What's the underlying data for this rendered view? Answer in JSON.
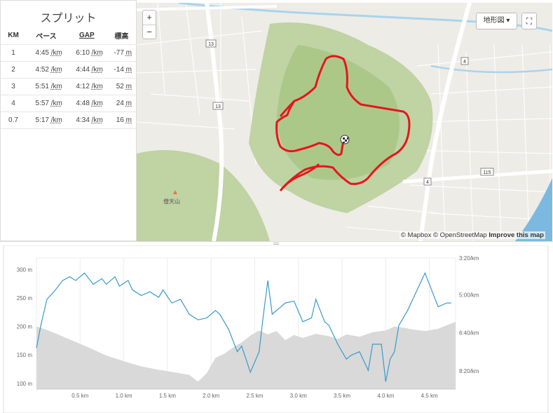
{
  "splits": {
    "title": "スプリット",
    "headers": {
      "km": "KM",
      "pace": "ペース",
      "gap": "GAP",
      "elev": "標高"
    },
    "rows": [
      {
        "km": "1",
        "pace": "4:45",
        "pace_unit": "/km",
        "gap": "6:10",
        "gap_unit": "/km",
        "elev": "-77",
        "elev_unit": "m"
      },
      {
        "km": "2",
        "pace": "4:52",
        "pace_unit": "/km",
        "gap": "4:44",
        "gap_unit": "/km",
        "elev": "-14",
        "elev_unit": "m"
      },
      {
        "km": "3",
        "pace": "5:51",
        "pace_unit": "/km",
        "gap": "4:12",
        "gap_unit": "/km",
        "elev": "52",
        "elev_unit": "m"
      },
      {
        "km": "4",
        "pace": "5:57",
        "pace_unit": "/km",
        "gap": "4:48",
        "gap_unit": "/km",
        "elev": "24",
        "elev_unit": "m"
      },
      {
        "km": "0.7",
        "pace": "5:17",
        "pace_unit": "/km",
        "gap": "4:34",
        "gap_unit": "/km",
        "elev": "16",
        "elev_unit": "m"
      }
    ]
  },
  "map": {
    "zoom_in": "+",
    "zoom_out": "−",
    "map_type_label": "地形図",
    "fullscreen_icon": "fullscreen-icon",
    "attribution_mapbox": "© Mapbox",
    "attribution_osm": "© OpenStreetMap",
    "attribution_improve": "Improve this map",
    "route_shields": [
      "13",
      "13",
      "4",
      "4",
      "115"
    ],
    "peak_label": "僧天山",
    "route_color": "#e8141c"
  },
  "chart_data": {
    "type": "area",
    "x_unit": "km",
    "xlim": [
      0,
      4.8
    ],
    "x_ticks": [
      0.5,
      1.0,
      1.5,
      2.0,
      2.5,
      3.0,
      3.5,
      4.0,
      4.5
    ],
    "x_tick_labels": [
      "0.5 km",
      "1.0 km",
      "1.5 km",
      "2.0 km",
      "2.5 km",
      "3.0 km",
      "3.5 km",
      "4.0 km",
      "4.5 km"
    ],
    "left_axis": {
      "ylim": [
        90,
        320
      ],
      "ticks": [
        100,
        150,
        200,
        250,
        300
      ],
      "tick_labels": [
        "100 m",
        "150 m",
        "200 m",
        "250 m",
        "300 m"
      ]
    },
    "right_axis": {
      "ticks": [
        "3:20/km",
        "5:00/km",
        "6:40/km",
        "8:20/km"
      ]
    },
    "series": [
      {
        "kind": "elevation",
        "color": "#d9d9d9",
        "x": [
          0,
          0.1,
          0.2,
          0.4,
          0.6,
          0.8,
          1.0,
          1.2,
          1.4,
          1.6,
          1.75,
          1.85,
          1.95,
          2.05,
          2.15,
          2.25,
          2.35,
          2.45,
          2.55,
          2.65,
          2.75,
          2.85,
          2.95,
          3.05,
          3.2,
          3.35,
          3.45,
          3.55,
          3.7,
          3.85,
          4.0,
          4.1,
          4.2,
          4.3,
          4.45,
          4.6,
          4.8
        ],
        "y": [
          200,
          195,
          189,
          176,
          163,
          149,
          139,
          130,
          124,
          119,
          115,
          103,
          118,
          145,
          152,
          163,
          172,
          184,
          193,
          186,
          192,
          176,
          185,
          180,
          187,
          183,
          178,
          186,
          182,
          190,
          193,
          200,
          198,
          195,
          192,
          196,
          208
        ]
      },
      {
        "kind": "pace",
        "color": "#3a9ac9",
        "unit": "sec/km",
        "x": [
          0,
          0.05,
          0.12,
          0.2,
          0.3,
          0.38,
          0.45,
          0.55,
          0.65,
          0.75,
          0.8,
          0.9,
          0.95,
          1.05,
          1.1,
          1.2,
          1.3,
          1.4,
          1.45,
          1.55,
          1.65,
          1.75,
          1.85,
          1.95,
          2.05,
          2.1,
          2.2,
          2.3,
          2.35,
          2.45,
          2.55,
          2.6,
          2.65,
          2.7,
          2.8,
          2.85,
          2.95,
          3.05,
          3.15,
          3.2,
          3.3,
          3.35,
          3.45,
          3.55,
          3.6,
          3.7,
          3.8,
          3.85,
          3.95,
          4.0,
          4.05,
          4.1,
          4.15,
          4.25,
          4.35,
          4.45,
          4.55,
          4.6,
          4.7,
          4.75
        ],
        "y": [
          390,
          330,
          260,
          240,
          210,
          200,
          210,
          190,
          220,
          205,
          220,
          200,
          225,
          210,
          235,
          250,
          240,
          255,
          235,
          270,
          260,
          300,
          315,
          310,
          290,
          300,
          340,
          400,
          385,
          455,
          400,
          300,
          210,
          300,
          280,
          270,
          265,
          320,
          310,
          260,
          320,
          330,
          380,
          420,
          410,
          400,
          450,
          380,
          380,
          480,
          420,
          400,
          330,
          290,
          240,
          190,
          250,
          280,
          270,
          270
        ]
      }
    ]
  }
}
